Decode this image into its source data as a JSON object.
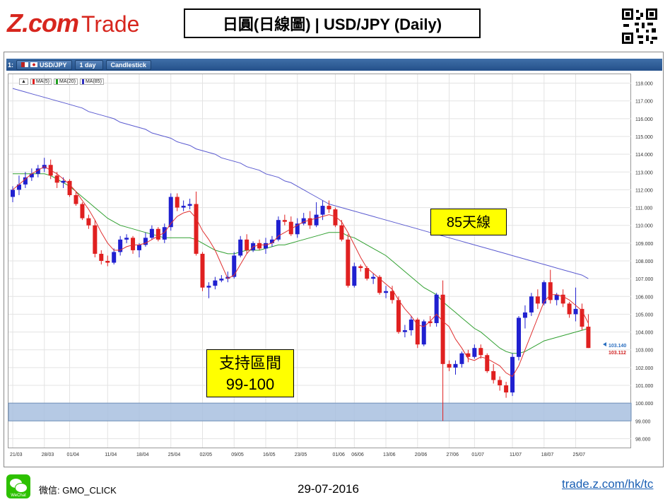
{
  "header": {
    "logo_text_bold": "Z.com",
    "logo_text_light": "Trade",
    "title": "日圓(日線圖) | USD/JPY  (Daily)"
  },
  "toolbar": {
    "index": "1:",
    "symbol": "USD/JPY",
    "period": "1 day",
    "chart_type": "Candlestick"
  },
  "legend": [
    {
      "label": "MA(5)",
      "color": "#e02020"
    },
    {
      "label": "MA(20)",
      "color": "#20a020"
    },
    {
      "label": "MA(85)",
      "color": "#3030c0"
    }
  ],
  "annotations": {
    "ma85": "85天線",
    "support_line1": "支持區間",
    "support_line2": "99-100"
  },
  "price_labels": {
    "last_bid": "103.140",
    "last_ask": "103.112"
  },
  "footer": {
    "wechat_icon_text": "WeChat",
    "wechat_label": "微信: GMO_CLICK",
    "date": "29-07-2016",
    "url": "trade.z.com/hk/tc"
  },
  "chart_data": {
    "type": "candlestick",
    "ylim": [
      97.5,
      118.5
    ],
    "y_ticks": [
      "98.000",
      "99.000",
      "100.000",
      "101.000",
      "102.000",
      "103.000",
      "104.000",
      "105.000",
      "106.000",
      "107.000",
      "108.000",
      "109.000",
      "110.000",
      "111.000",
      "112.000",
      "113.000",
      "114.000",
      "115.000",
      "116.000",
      "117.000",
      "118.000"
    ],
    "x_labels": [
      {
        "label": "21/03",
        "index": 0
      },
      {
        "label": "28/03",
        "index": 5
      },
      {
        "label": "01/04",
        "index": 9
      },
      {
        "label": "11/04",
        "index": 15
      },
      {
        "label": "18/04",
        "index": 20
      },
      {
        "label": "25/04",
        "index": 25
      },
      {
        "label": "02/05",
        "index": 30
      },
      {
        "label": "09/05",
        "index": 35
      },
      {
        "label": "16/05",
        "index": 40
      },
      {
        "label": "23/05",
        "index": 45
      },
      {
        "label": "01/06",
        "index": 51
      },
      {
        "label": "06/06",
        "index": 54
      },
      {
        "label": "13/06",
        "index": 59
      },
      {
        "label": "20/06",
        "index": 64
      },
      {
        "label": "27/06",
        "index": 69
      },
      {
        "label": "01/07",
        "index": 73
      },
      {
        "label": "11/07",
        "index": 79
      },
      {
        "label": "18/07",
        "index": 84
      },
      {
        "label": "25/07",
        "index": 89
      }
    ],
    "candles": [
      [
        111.6,
        112.2,
        111.3,
        112.0
      ],
      [
        112.0,
        112.8,
        111.7,
        112.3
      ],
      [
        112.3,
        113.0,
        112.1,
        112.7
      ],
      [
        112.7,
        113.2,
        112.5,
        112.9
      ],
      [
        112.9,
        113.4,
        112.7,
        113.2
      ],
      [
        113.2,
        113.8,
        113.0,
        113.4
      ],
      [
        113.4,
        113.7,
        112.6,
        112.8
      ],
      [
        112.8,
        113.0,
        112.1,
        112.4
      ],
      [
        112.4,
        112.7,
        112.1,
        112.5
      ],
      [
        112.5,
        112.6,
        111.6,
        111.7
      ],
      [
        111.7,
        111.9,
        111.1,
        111.2
      ],
      [
        111.2,
        111.3,
        110.3,
        110.4
      ],
      [
        110.4,
        110.6,
        109.8,
        110.0
      ],
      [
        110.0,
        110.3,
        108.2,
        108.4
      ],
      [
        108.4,
        108.6,
        107.8,
        108.0
      ],
      [
        108.0,
        108.3,
        107.7,
        107.9
      ],
      [
        107.9,
        108.7,
        107.8,
        108.5
      ],
      [
        108.5,
        109.4,
        108.3,
        109.2
      ],
      [
        109.2,
        109.5,
        109.0,
        109.3
      ],
      [
        109.3,
        109.4,
        108.4,
        108.6
      ],
      [
        108.6,
        109.0,
        108.2,
        108.9
      ],
      [
        108.9,
        109.6,
        108.8,
        109.3
      ],
      [
        109.3,
        110.0,
        109.2,
        109.8
      ],
      [
        109.8,
        109.9,
        109.1,
        109.2
      ],
      [
        109.2,
        110.1,
        109.0,
        109.9
      ],
      [
        109.9,
        111.8,
        109.7,
        111.6
      ],
      [
        111.6,
        111.8,
        110.8,
        111.0
      ],
      [
        111.0,
        111.4,
        110.8,
        111.1
      ],
      [
        111.1,
        111.5,
        110.9,
        111.2
      ],
      [
        111.2,
        111.9,
        108.3,
        108.4
      ],
      [
        108.4,
        108.5,
        106.3,
        106.5
      ],
      [
        106.5,
        106.8,
        105.9,
        106.6
      ],
      [
        106.6,
        107.1,
        106.4,
        106.9
      ],
      [
        106.9,
        107.2,
        106.8,
        107.0
      ],
      [
        107.0,
        107.4,
        106.8,
        107.1
      ],
      [
        107.1,
        108.5,
        107.0,
        108.3
      ],
      [
        108.3,
        109.4,
        108.2,
        109.2
      ],
      [
        109.2,
        109.5,
        108.4,
        108.6
      ],
      [
        108.6,
        109.1,
        108.5,
        109.0
      ],
      [
        109.0,
        109.2,
        108.6,
        108.7
      ],
      [
        108.7,
        109.3,
        108.4,
        109.0
      ],
      [
        109.0,
        109.4,
        108.8,
        109.2
      ],
      [
        109.2,
        110.5,
        109.1,
        110.3
      ],
      [
        110.3,
        110.6,
        110.0,
        110.2
      ],
      [
        110.2,
        110.5,
        109.4,
        109.5
      ],
      [
        109.5,
        110.4,
        109.3,
        110.1
      ],
      [
        110.1,
        110.7,
        110.0,
        110.4
      ],
      [
        110.4,
        110.8,
        109.8,
        110.0
      ],
      [
        110.0,
        111.3,
        109.9,
        110.6
      ],
      [
        110.6,
        111.4,
        110.3,
        111.1
      ],
      [
        111.1,
        111.4,
        110.7,
        110.9
      ],
      [
        110.9,
        111.0,
        109.9,
        110.0
      ],
      [
        110.0,
        110.3,
        109.1,
        109.2
      ],
      [
        109.2,
        109.5,
        106.5,
        106.6
      ],
      [
        106.6,
        107.9,
        106.5,
        107.7
      ],
      [
        107.7,
        107.8,
        107.4,
        107.6
      ],
      [
        107.6,
        107.7,
        106.9,
        107.0
      ],
      [
        107.0,
        107.3,
        106.7,
        107.1
      ],
      [
        107.1,
        107.2,
        106.1,
        106.2
      ],
      [
        106.2,
        106.6,
        105.9,
        106.3
      ],
      [
        106.3,
        106.6,
        105.6,
        105.8
      ],
      [
        105.8,
        106.0,
        103.9,
        104.0
      ],
      [
        104.0,
        104.4,
        103.7,
        104.1
      ],
      [
        104.1,
        104.9,
        103.8,
        104.7
      ],
      [
        104.7,
        104.8,
        103.1,
        103.3
      ],
      [
        103.3,
        104.7,
        103.2,
        104.6
      ],
      [
        104.6,
        104.9,
        104.3,
        104.5
      ],
      [
        104.5,
        106.2,
        104.3,
        106.1
      ],
      [
        106.1,
        106.9,
        99.0,
        102.2
      ],
      [
        102.2,
        102.4,
        101.8,
        102.0
      ],
      [
        102.0,
        102.4,
        101.6,
        102.2
      ],
      [
        102.2,
        102.9,
        102.0,
        102.8
      ],
      [
        102.8,
        103.0,
        102.3,
        102.6
      ],
      [
        102.6,
        103.3,
        102.5,
        103.1
      ],
      [
        103.1,
        103.3,
        102.5,
        102.7
      ],
      [
        102.7,
        102.8,
        101.7,
        101.8
      ],
      [
        101.8,
        102.2,
        101.1,
        101.3
      ],
      [
        101.3,
        101.5,
        100.7,
        101.0
      ],
      [
        101.0,
        101.2,
        100.3,
        100.6
      ],
      [
        100.6,
        102.8,
        100.4,
        102.6
      ],
      [
        102.6,
        104.9,
        102.4,
        104.8
      ],
      [
        104.8,
        105.5,
        104.2,
        105.1
      ],
      [
        105.1,
        106.2,
        104.9,
        106.0
      ],
      [
        106.0,
        106.4,
        105.3,
        105.6
      ],
      [
        105.6,
        106.9,
        105.5,
        106.8
      ],
      [
        106.8,
        107.5,
        105.6,
        105.8
      ],
      [
        105.8,
        106.2,
        105.5,
        106.1
      ],
      [
        106.1,
        106.4,
        105.4,
        105.6
      ],
      [
        105.6,
        105.7,
        104.8,
        105.0
      ],
      [
        105.0,
        106.5,
        104.6,
        105.3
      ],
      [
        105.3,
        105.6,
        104.1,
        104.3
      ],
      [
        104.3,
        105.0,
        103.1,
        103.1
      ]
    ],
    "ma5": [
      112.0,
      112.3,
      112.6,
      112.9,
      113.1,
      113.3,
      113.1,
      112.9,
      112.6,
      112.3,
      111.9,
      111.4,
      110.9,
      110.3,
      109.6,
      109.0,
      108.6,
      108.6,
      108.8,
      108.9,
      108.9,
      109.0,
      109.2,
      109.4,
      109.6,
      110.1,
      110.5,
      110.7,
      110.8,
      110.4,
      109.7,
      109.2,
      108.6,
      107.8,
      107.0,
      107.2,
      107.8,
      108.4,
      108.8,
      108.9,
      108.9,
      109.0,
      109.4,
      109.6,
      109.8,
      110.0,
      110.2,
      110.3,
      110.4,
      110.5,
      110.6,
      110.5,
      110.2,
      109.6,
      108.9,
      108.2,
      107.6,
      107.3,
      107.0,
      106.7,
      106.4,
      105.8,
      105.3,
      104.9,
      104.4,
      104.3,
      104.6,
      105.0,
      104.6,
      104.3,
      103.6,
      103.1,
      102.5,
      102.4,
      102.6,
      102.5,
      102.3,
      102.1,
      101.7,
      101.5,
      102.1,
      103.0,
      103.9,
      104.8,
      105.7,
      106.1,
      106.1,
      106.0,
      105.8,
      105.5,
      105.2,
      104.5
    ],
    "ma20": [
      112.9,
      112.9,
      112.9,
      112.9,
      112.9,
      112.9,
      112.8,
      112.6,
      112.4,
      112.2,
      111.9,
      111.6,
      111.3,
      111.0,
      110.7,
      110.4,
      110.2,
      110.0,
      109.9,
      109.8,
      109.7,
      109.6,
      109.5,
      109.4,
      109.3,
      109.3,
      109.3,
      109.3,
      109.3,
      109.2,
      109.0,
      108.8,
      108.6,
      108.5,
      108.4,
      108.4,
      108.5,
      108.6,
      108.6,
      108.6,
      108.7,
      108.8,
      108.9,
      108.9,
      109.0,
      109.1,
      109.2,
      109.3,
      109.4,
      109.5,
      109.6,
      109.6,
      109.6,
      109.4,
      109.3,
      109.1,
      108.9,
      108.7,
      108.5,
      108.3,
      108.0,
      107.7,
      107.4,
      107.1,
      106.8,
      106.5,
      106.3,
      106.1,
      105.7,
      105.4,
      105.1,
      104.8,
      104.5,
      104.2,
      104.0,
      103.7,
      103.4,
      103.1,
      102.9,
      102.8,
      102.8,
      102.9,
      103.1,
      103.3,
      103.5,
      103.6,
      103.7,
      103.8,
      103.9,
      104.0,
      104.1,
      104.2
    ],
    "ma85": [
      117.7,
      117.6,
      117.5,
      117.4,
      117.3,
      117.2,
      117.1,
      117.0,
      116.9,
      116.8,
      116.7,
      116.6,
      116.4,
      116.3,
      116.2,
      116.1,
      116.0,
      115.8,
      115.7,
      115.6,
      115.5,
      115.4,
      115.2,
      115.1,
      115.0,
      114.9,
      114.7,
      114.6,
      114.5,
      114.3,
      114.2,
      114.1,
      114.0,
      113.8,
      113.7,
      113.6,
      113.5,
      113.3,
      113.2,
      113.1,
      112.9,
      112.8,
      112.7,
      112.5,
      112.4,
      112.2,
      112.0,
      111.8,
      111.6,
      111.4,
      111.2,
      111.1,
      111.0,
      110.9,
      110.8,
      110.7,
      110.6,
      110.5,
      110.4,
      110.3,
      110.2,
      110.1,
      110.0,
      109.9,
      109.8,
      109.7,
      109.6,
      109.5,
      109.4,
      109.3,
      109.2,
      109.1,
      109.0,
      108.9,
      108.8,
      108.7,
      108.6,
      108.5,
      108.4,
      108.3,
      108.2,
      108.1,
      108.0,
      107.9,
      107.8,
      107.7,
      107.6,
      107.5,
      107.4,
      107.3,
      107.2,
      107.0
    ],
    "support_zone": [
      99.0,
      100.0
    ],
    "colors": {
      "up": "#2020d0",
      "down": "#e02020",
      "grid": "#e3e3e3",
      "zone": "#a8c0df"
    }
  }
}
